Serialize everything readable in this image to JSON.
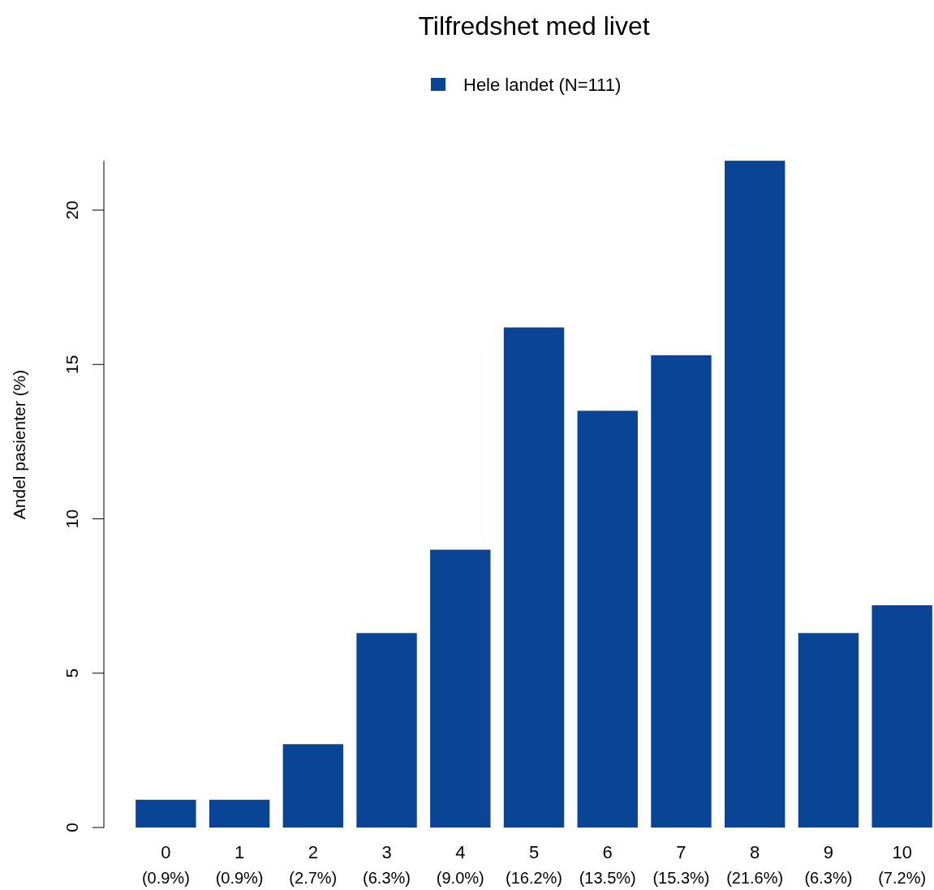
{
  "chart_data": {
    "type": "bar",
    "title": "Tilfredshet med livet",
    "ylabel": "Andel pasienter (%)",
    "categories": [
      "0",
      "1",
      "2",
      "3",
      "4",
      "5",
      "6",
      "7",
      "8",
      "9",
      "10"
    ],
    "series": [
      {
        "name": "Hele landet (N=111)",
        "color": "#0a4595",
        "values": [
          0.9,
          0.9,
          2.7,
          6.3,
          9.0,
          16.2,
          13.5,
          15.3,
          21.6,
          6.3,
          7.2
        ],
        "value_labels": [
          "(0.9%)",
          "(0.9%)",
          "(2.7%)",
          "(6.3%)",
          "(9.0%)",
          "(16.2%)",
          "(13.5%)",
          "(15.3%)",
          "(21.6%)",
          "(6.3%)",
          "(7.2%)"
        ]
      }
    ],
    "ylim": [
      0,
      21.6
    ],
    "yticks": [
      0,
      5,
      10,
      15,
      20
    ],
    "legend": "top",
    "grid": false
  }
}
